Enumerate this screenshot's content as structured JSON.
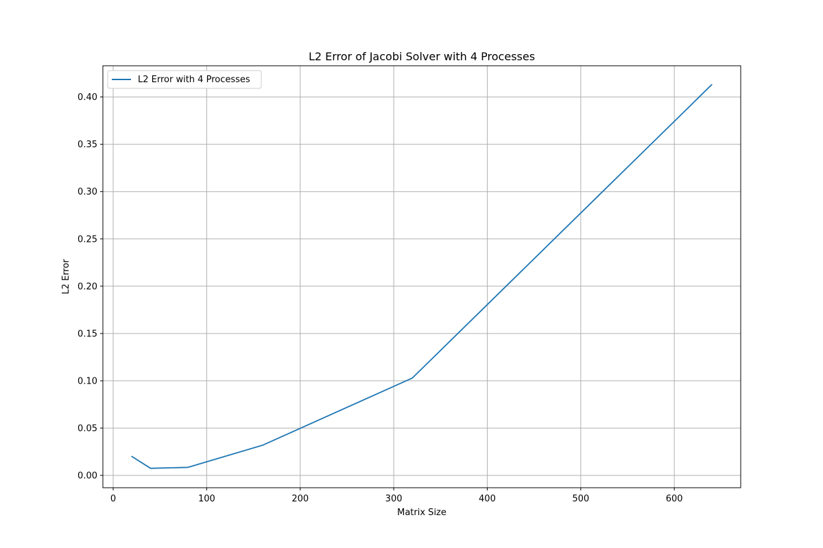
{
  "chart_data": {
    "type": "line",
    "title": "L2 Error of Jacobi Solver with 4 Processes",
    "xlabel": "Matrix Size",
    "ylabel": "L2 Error",
    "xlim": [
      -11,
      671
    ],
    "ylim": [
      -0.013,
      0.433
    ],
    "xticks": [
      0,
      100,
      200,
      300,
      400,
      500,
      600
    ],
    "yticks": [
      0.0,
      0.05,
      0.1,
      0.15,
      0.2,
      0.25,
      0.3,
      0.35,
      0.4
    ],
    "xtick_labels": [
      "0",
      "100",
      "200",
      "300",
      "400",
      "500",
      "600"
    ],
    "ytick_labels": [
      "0.00",
      "0.05",
      "0.10",
      "0.15",
      "0.20",
      "0.25",
      "0.30",
      "0.35",
      "0.40"
    ],
    "grid": true,
    "legend_position": "top-left",
    "series": [
      {
        "name": "L2 Error with 4 Processes",
        "color": "#1f77b4",
        "x": [
          20,
          40,
          80,
          160,
          320,
          640
        ],
        "y": [
          0.02,
          0.0075,
          0.0085,
          0.032,
          0.103,
          0.413
        ]
      }
    ]
  }
}
